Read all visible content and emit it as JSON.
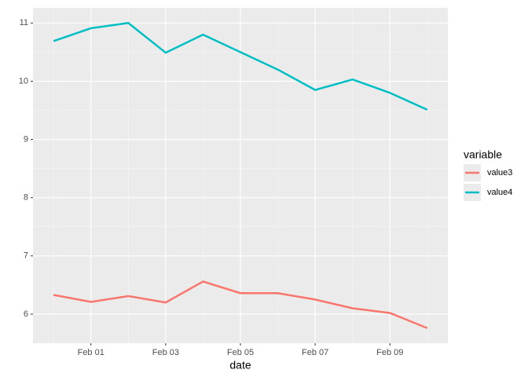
{
  "chart_data": {
    "type": "line",
    "x_label": "date",
    "legend_title": "variable",
    "categories": [
      null,
      "Feb 01",
      null,
      "Feb 03",
      null,
      "Feb 05",
      null,
      "Feb 07",
      null,
      "Feb 09",
      null
    ],
    "series": [
      {
        "name": "value3",
        "color": "#f8766d",
        "values": [
          6.33,
          6.21,
          6.31,
          6.2,
          6.56,
          6.36,
          6.36,
          6.25,
          6.1,
          6.02,
          5.76
        ]
      },
      {
        "name": "value4",
        "color": "#00bfc4",
        "values": [
          10.69,
          10.91,
          11.0,
          10.49,
          10.8,
          10.5,
          10.2,
          9.85,
          10.03,
          9.8,
          9.51
        ]
      }
    ],
    "ylim": [
      5.5,
      11.26
    ],
    "yticks": [
      6,
      7,
      8,
      9,
      10,
      11
    ],
    "grid": true,
    "legend": "right"
  }
}
